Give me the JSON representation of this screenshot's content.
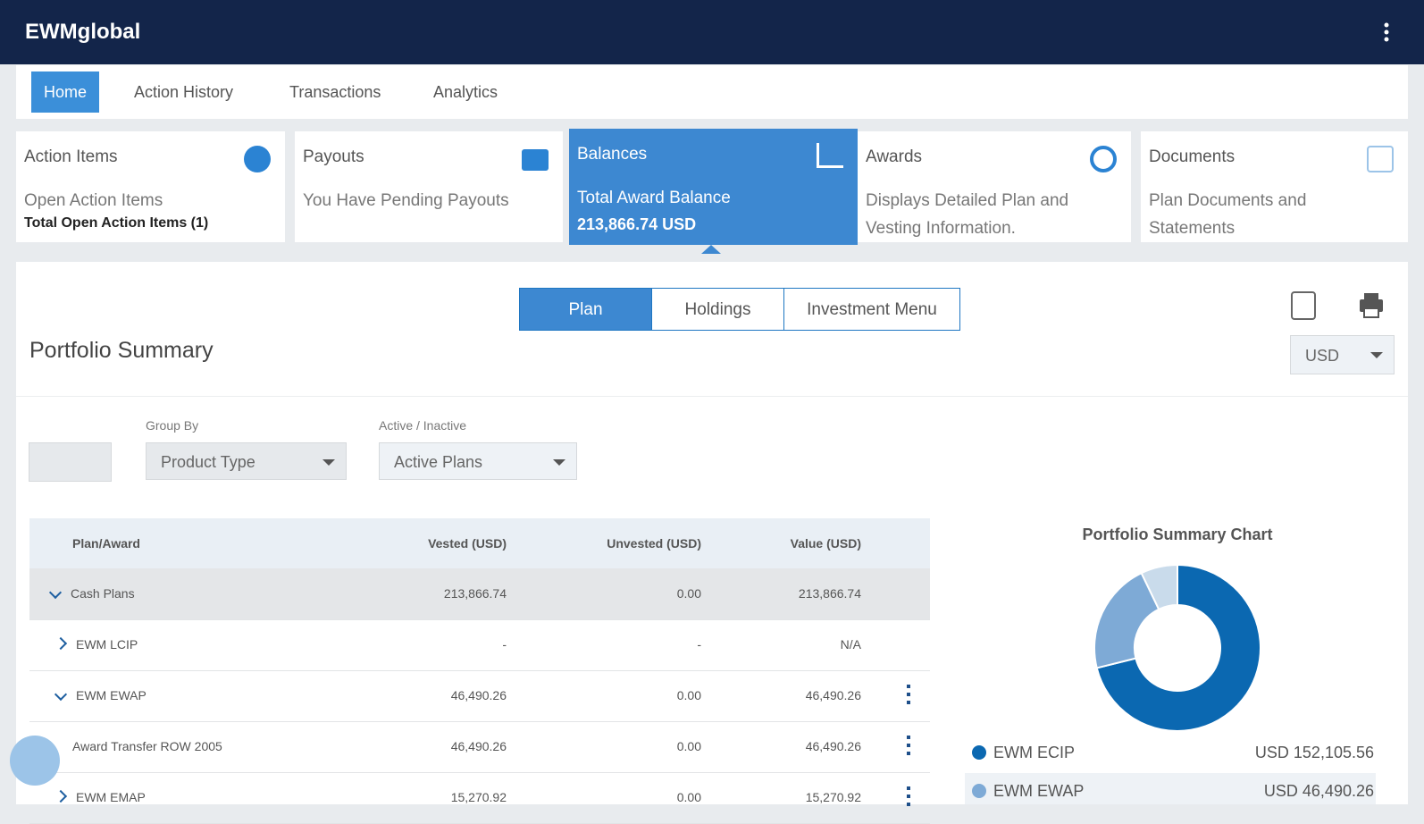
{
  "header": {
    "brand": "EWMglobal"
  },
  "nav": {
    "tabs": [
      "Home",
      "Action History",
      "Transactions",
      "Analytics"
    ]
  },
  "cards": [
    {
      "title": "Action Items",
      "line1": "Open Action Items",
      "line2": "Total Open Action Items (1)"
    },
    {
      "title": "Payouts",
      "line1": "You Have Pending Payouts"
    },
    {
      "title": "Balances",
      "line1": "Total Award Balance",
      "line2": "213,866.74 USD"
    },
    {
      "title": "Awards",
      "line1": "Displays Detailed Plan and Vesting Information."
    },
    {
      "title": "Documents",
      "line1": "Plan Documents and Statements"
    }
  ],
  "portfolio": {
    "title": "Portfolio Summary",
    "view_tabs": [
      "Plan",
      "Holdings",
      "Investment Menu"
    ],
    "currency": "USD",
    "group_by_label": "Group By",
    "group_by": "Product Type",
    "active_label": "Active / Inactive",
    "active": "Active Plans"
  },
  "table": {
    "columns": [
      "Plan/Award",
      "Vested (USD)",
      "Unvested (USD)",
      "Value (USD)"
    ],
    "rows": [
      [
        "Cash Plans",
        "213,866.74",
        "0.00",
        "213,866.74"
      ],
      [
        "EWM LCIP",
        "-",
        "-",
        "N/A"
      ],
      [
        "EWM EWAP",
        "46,490.26",
        "0.00",
        "46,490.26"
      ],
      [
        "Award Transfer ROW 2005",
        "46,490.26",
        "0.00",
        "46,490.26"
      ],
      [
        "EWM EMAP",
        "15,270.92",
        "0.00",
        "15,270.92"
      ]
    ]
  },
  "chart_data": {
    "type": "donut",
    "title": "Portfolio Summary Chart",
    "categories": [
      "EWM ECIP",
      "EWM EWAP",
      null
    ],
    "values": [
      152105.56,
      46490.26,
      15270.92
    ],
    "value_labels": [
      "USD 152,105.56",
      "USD 46,490.26",
      null
    ],
    "colors": [
      "#0b68b1",
      "#7eaad6",
      "#c9dbeb"
    ]
  }
}
